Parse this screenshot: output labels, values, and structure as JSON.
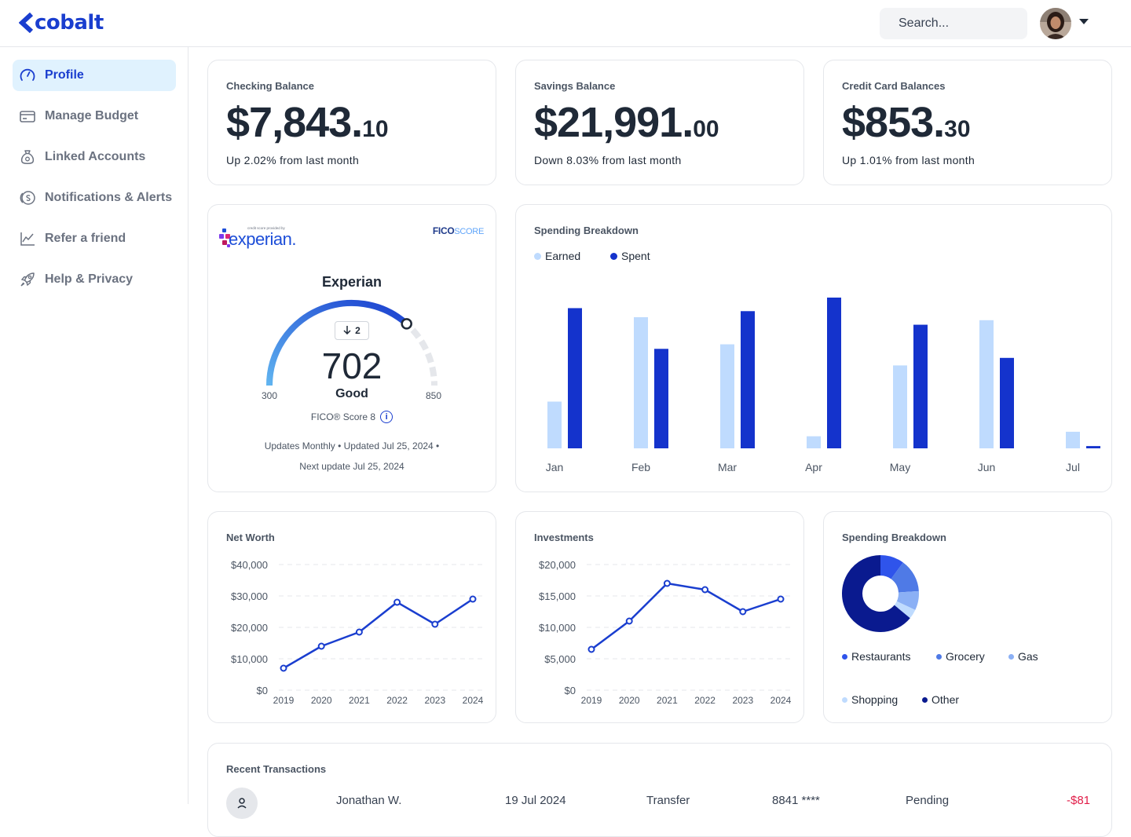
{
  "header": {
    "brand": "cobalt",
    "search_placeholder": "Search..."
  },
  "sidebar": {
    "items": [
      {
        "label": "Profile",
        "icon": "gauge-icon",
        "active": true
      },
      {
        "label": "Manage Budget",
        "icon": "credit-card-icon",
        "active": false
      },
      {
        "label": "Linked Accounts",
        "icon": "money-bag-icon",
        "active": false
      },
      {
        "label": "Notifications & Alerts",
        "icon": "coin-icon",
        "active": false
      },
      {
        "label": "Refer a friend",
        "icon": "trend-chart-icon",
        "active": false
      },
      {
        "label": "Help & Privacy",
        "icon": "rocket-icon",
        "active": false
      }
    ]
  },
  "balances": [
    {
      "title": "Checking Balance",
      "dollars": "$7,843.",
      "cents": "10",
      "change": "Up 2.02% from last month"
    },
    {
      "title": "Savings Balance",
      "dollars": "$21,991.",
      "cents": "00",
      "change": "Down 8.03% from last month"
    },
    {
      "title": "Credit Card Balances",
      "dollars": "$853.",
      "cents": "30",
      "change": "Up 1.01% from last month"
    }
  ],
  "credit_score": {
    "provider_tagline": "credit score provided by",
    "provider_logo": "experian.",
    "fico_logo": "FICO",
    "fico_logo_suffix": "SCORE",
    "title": "Experian",
    "change": "2",
    "score": "702",
    "score_value": 702,
    "rating": "Good",
    "min": "300",
    "max": "850",
    "model": "FICO® Score 8",
    "updates_line": "Updates Monthly • Updated Jul 25, 2024 •",
    "next_update": "Next update Jul 25, 2024"
  },
  "spending_breakdown_bar": {
    "title": "Spending Breakdown",
    "legend": [
      "Earned",
      "Spent"
    ]
  },
  "net_worth": {
    "title": "Net Worth"
  },
  "investments": {
    "title": "Investments"
  },
  "spending_breakdown_donut": {
    "title": "Spending Breakdown",
    "legend": [
      "Restaurants",
      "Grocery",
      "Gas",
      "Shopping",
      "Other"
    ]
  },
  "transactions": {
    "title": "Recent Transactions",
    "rows": [
      {
        "name": "Jonathan W.",
        "date": "19 Jul 2024",
        "type": "Transfer",
        "card": "8841 ****",
        "status": "Pending",
        "amount": "-$81"
      }
    ]
  },
  "colors": {
    "accent": "#1a3ecf",
    "earned": "#bfdbfe",
    "spent": "#1433cc",
    "negative": "#e11d48"
  },
  "chart_data": [
    {
      "type": "bar",
      "title": "Spending Breakdown",
      "categories": [
        "Jan",
        "Feb",
        "Mar",
        "Apr",
        "May",
        "Jun",
        "Jul"
      ],
      "series": [
        {
          "name": "Earned",
          "color": "#bfdbfe",
          "values": [
            31,
            87,
            69,
            8,
            55,
            85,
            11
          ]
        },
        {
          "name": "Spent",
          "color": "#1433cc",
          "values": [
            93,
            66,
            91,
            100,
            82,
            60,
            1.5
          ]
        }
      ],
      "ylim": [
        0,
        100
      ],
      "grid": false,
      "legend": "top-left"
    },
    {
      "type": "line",
      "title": "Net Worth",
      "x": [
        "2019",
        "2020",
        "2021",
        "2022",
        "2023",
        "2024"
      ],
      "series": [
        {
          "values": [
            7000,
            14000,
            18500,
            28000,
            21000,
            29000
          ]
        }
      ],
      "ylim": [
        0,
        40000
      ],
      "yticks": [
        "$0",
        "$10,000",
        "$20,000",
        "$30,000",
        "$40,000"
      ],
      "grid": true
    },
    {
      "type": "line",
      "title": "Investments",
      "x": [
        "2019",
        "2020",
        "2021",
        "2022",
        "2023",
        "2024"
      ],
      "series": [
        {
          "values": [
            6500,
            11000,
            17000,
            16000,
            12500,
            14500
          ]
        }
      ],
      "ylim": [
        0,
        20000
      ],
      "yticks": [
        "$0",
        "$5,000",
        "$10,000",
        "$15,000",
        "$20,000"
      ],
      "grid": true
    },
    {
      "type": "pie",
      "title": "Spending Breakdown",
      "labels": [
        "Restaurants",
        "Grocery",
        "Gas",
        "Shopping",
        "Other"
      ],
      "values": [
        10,
        14,
        8,
        4,
        64
      ],
      "colors": [
        "#2f54eb",
        "#4f7ae6",
        "#8bb0f5",
        "#bfdbfe",
        "#0a1a8f"
      ],
      "legend": "bottom"
    }
  ]
}
